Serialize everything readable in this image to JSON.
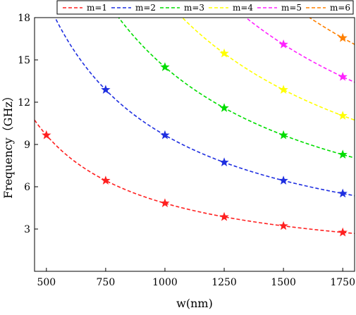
{
  "chart_data": {
    "type": "line",
    "xlabel": "w(nm)",
    "ylabel": "Frequency（GHz）",
    "xlim": [
      450,
      1800
    ],
    "ylim": [
      0,
      18
    ],
    "xticks": [
      500,
      750,
      1000,
      1250,
      1500,
      1750
    ],
    "yticks": [
      3,
      6,
      9,
      12,
      15,
      18
    ],
    "legend_position": "top",
    "grid": false,
    "curve_model": "f = k / w",
    "series": [
      {
        "name": "m=1",
        "color": "#ff2020",
        "k": 4830,
        "points": [
          [
            500,
            9.66
          ],
          [
            750,
            6.44
          ],
          [
            1000,
            4.83
          ],
          [
            1250,
            3.86
          ],
          [
            1500,
            3.22
          ],
          [
            1750,
            2.76
          ]
        ]
      },
      {
        "name": "m=2",
        "color": "#1f2fe0",
        "k": 9660,
        "points": [
          [
            750,
            12.88
          ],
          [
            1000,
            9.66
          ],
          [
            1250,
            7.73
          ],
          [
            1500,
            6.44
          ],
          [
            1750,
            5.52
          ]
        ]
      },
      {
        "name": "m=3",
        "color": "#00dd00",
        "k": 14490,
        "points": [
          [
            1000,
            14.49
          ],
          [
            1250,
            11.59
          ],
          [
            1500,
            9.66
          ],
          [
            1750,
            8.28
          ]
        ]
      },
      {
        "name": "m=4",
        "color": "#ffff00",
        "k": 19320,
        "points": [
          [
            1250,
            15.46
          ],
          [
            1500,
            12.88
          ],
          [
            1750,
            11.04
          ]
        ]
      },
      {
        "name": "m=5",
        "color": "#ff22ff",
        "k": 24150,
        "points": [
          [
            1500,
            16.1
          ],
          [
            1750,
            13.8
          ]
        ]
      },
      {
        "name": "m=6",
        "color": "#ff8000",
        "k": 28980,
        "points": [
          [
            1750,
            16.56
          ]
        ]
      }
    ]
  }
}
